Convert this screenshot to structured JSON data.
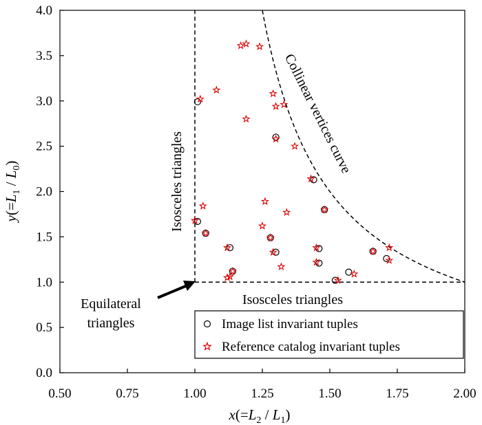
{
  "chart_data": {
    "type": "scatter",
    "title": "",
    "xlabel": "x(=L_2/L_1)",
    "ylabel": "y(=L_1/L_0)",
    "xlim": [
      0.5,
      2.0
    ],
    "ylim": [
      0.0,
      4.0
    ],
    "xticks": [
      "0.50",
      "0.75",
      "1.00",
      "1.25",
      "1.50",
      "1.75",
      "2.00"
    ],
    "yticks": [
      "0.0",
      "0.5",
      "1.0",
      "1.5",
      "2.0",
      "2.5",
      "3.0",
      "3.5",
      "4.0"
    ],
    "grid": false,
    "legend_position": "bottom-right",
    "series": [
      {
        "name": "Image list invariant tuples",
        "marker": "circle",
        "color": "#000000",
        "points": [
          [
            1.01,
            2.99
          ],
          [
            1.01,
            1.67
          ],
          [
            1.04,
            1.54
          ],
          [
            1.13,
            1.38
          ],
          [
            1.14,
            1.12
          ],
          [
            1.28,
            1.49
          ],
          [
            1.3,
            1.33
          ],
          [
            1.3,
            2.6
          ],
          [
            1.44,
            2.13
          ],
          [
            1.46,
            1.37
          ],
          [
            1.46,
            1.21
          ],
          [
            1.48,
            1.8
          ],
          [
            1.52,
            1.02
          ],
          [
            1.57,
            1.11
          ],
          [
            1.66,
            1.34
          ],
          [
            1.71,
            1.26
          ]
        ]
      },
      {
        "name": "Reference catalog invariant tuples",
        "marker": "star",
        "color": "#e00000",
        "points": [
          [
            1.02,
            3.02
          ],
          [
            1.08,
            3.12
          ],
          [
            1.17,
            3.61
          ],
          [
            1.19,
            3.63
          ],
          [
            1.24,
            3.6
          ],
          [
            1.29,
            3.08
          ],
          [
            1.3,
            2.94
          ],
          [
            1.33,
            2.96
          ],
          [
            1.19,
            2.8
          ],
          [
            1.3,
            2.58
          ],
          [
            1.37,
            2.5
          ],
          [
            1.43,
            2.14
          ],
          [
            1.0,
            1.68
          ],
          [
            1.04,
            1.54
          ],
          [
            1.12,
            1.38
          ],
          [
            1.26,
            1.89
          ],
          [
            1.34,
            1.77
          ],
          [
            1.03,
            1.84
          ],
          [
            1.25,
            1.62
          ],
          [
            1.28,
            1.49
          ],
          [
            1.29,
            1.33
          ],
          [
            1.32,
            1.17
          ],
          [
            1.12,
            1.05
          ],
          [
            1.13,
            1.06
          ],
          [
            1.14,
            1.12
          ],
          [
            1.45,
            1.38
          ],
          [
            1.45,
            1.22
          ],
          [
            1.48,
            1.8
          ],
          [
            1.53,
            1.02
          ],
          [
            1.59,
            1.09
          ],
          [
            1.66,
            1.34
          ],
          [
            1.72,
            1.38
          ],
          [
            1.72,
            1.24
          ]
        ]
      }
    ],
    "reference_lines": {
      "vertical_x": 1.0,
      "horizontal_y": 1.0,
      "curve": "y = 1/(x-1)"
    },
    "annotations": {
      "isosceles_vertical": "Isosceles triangles",
      "isosceles_horizontal": "Isosceles triangles",
      "collinear_curve": "Collinear vertices curve",
      "equilateral_line1": "Equilateral",
      "equilateral_line2": "triangles"
    },
    "legend": {
      "entries": [
        "Image list invariant tuples",
        "Reference catalog invariant tuples"
      ]
    }
  }
}
